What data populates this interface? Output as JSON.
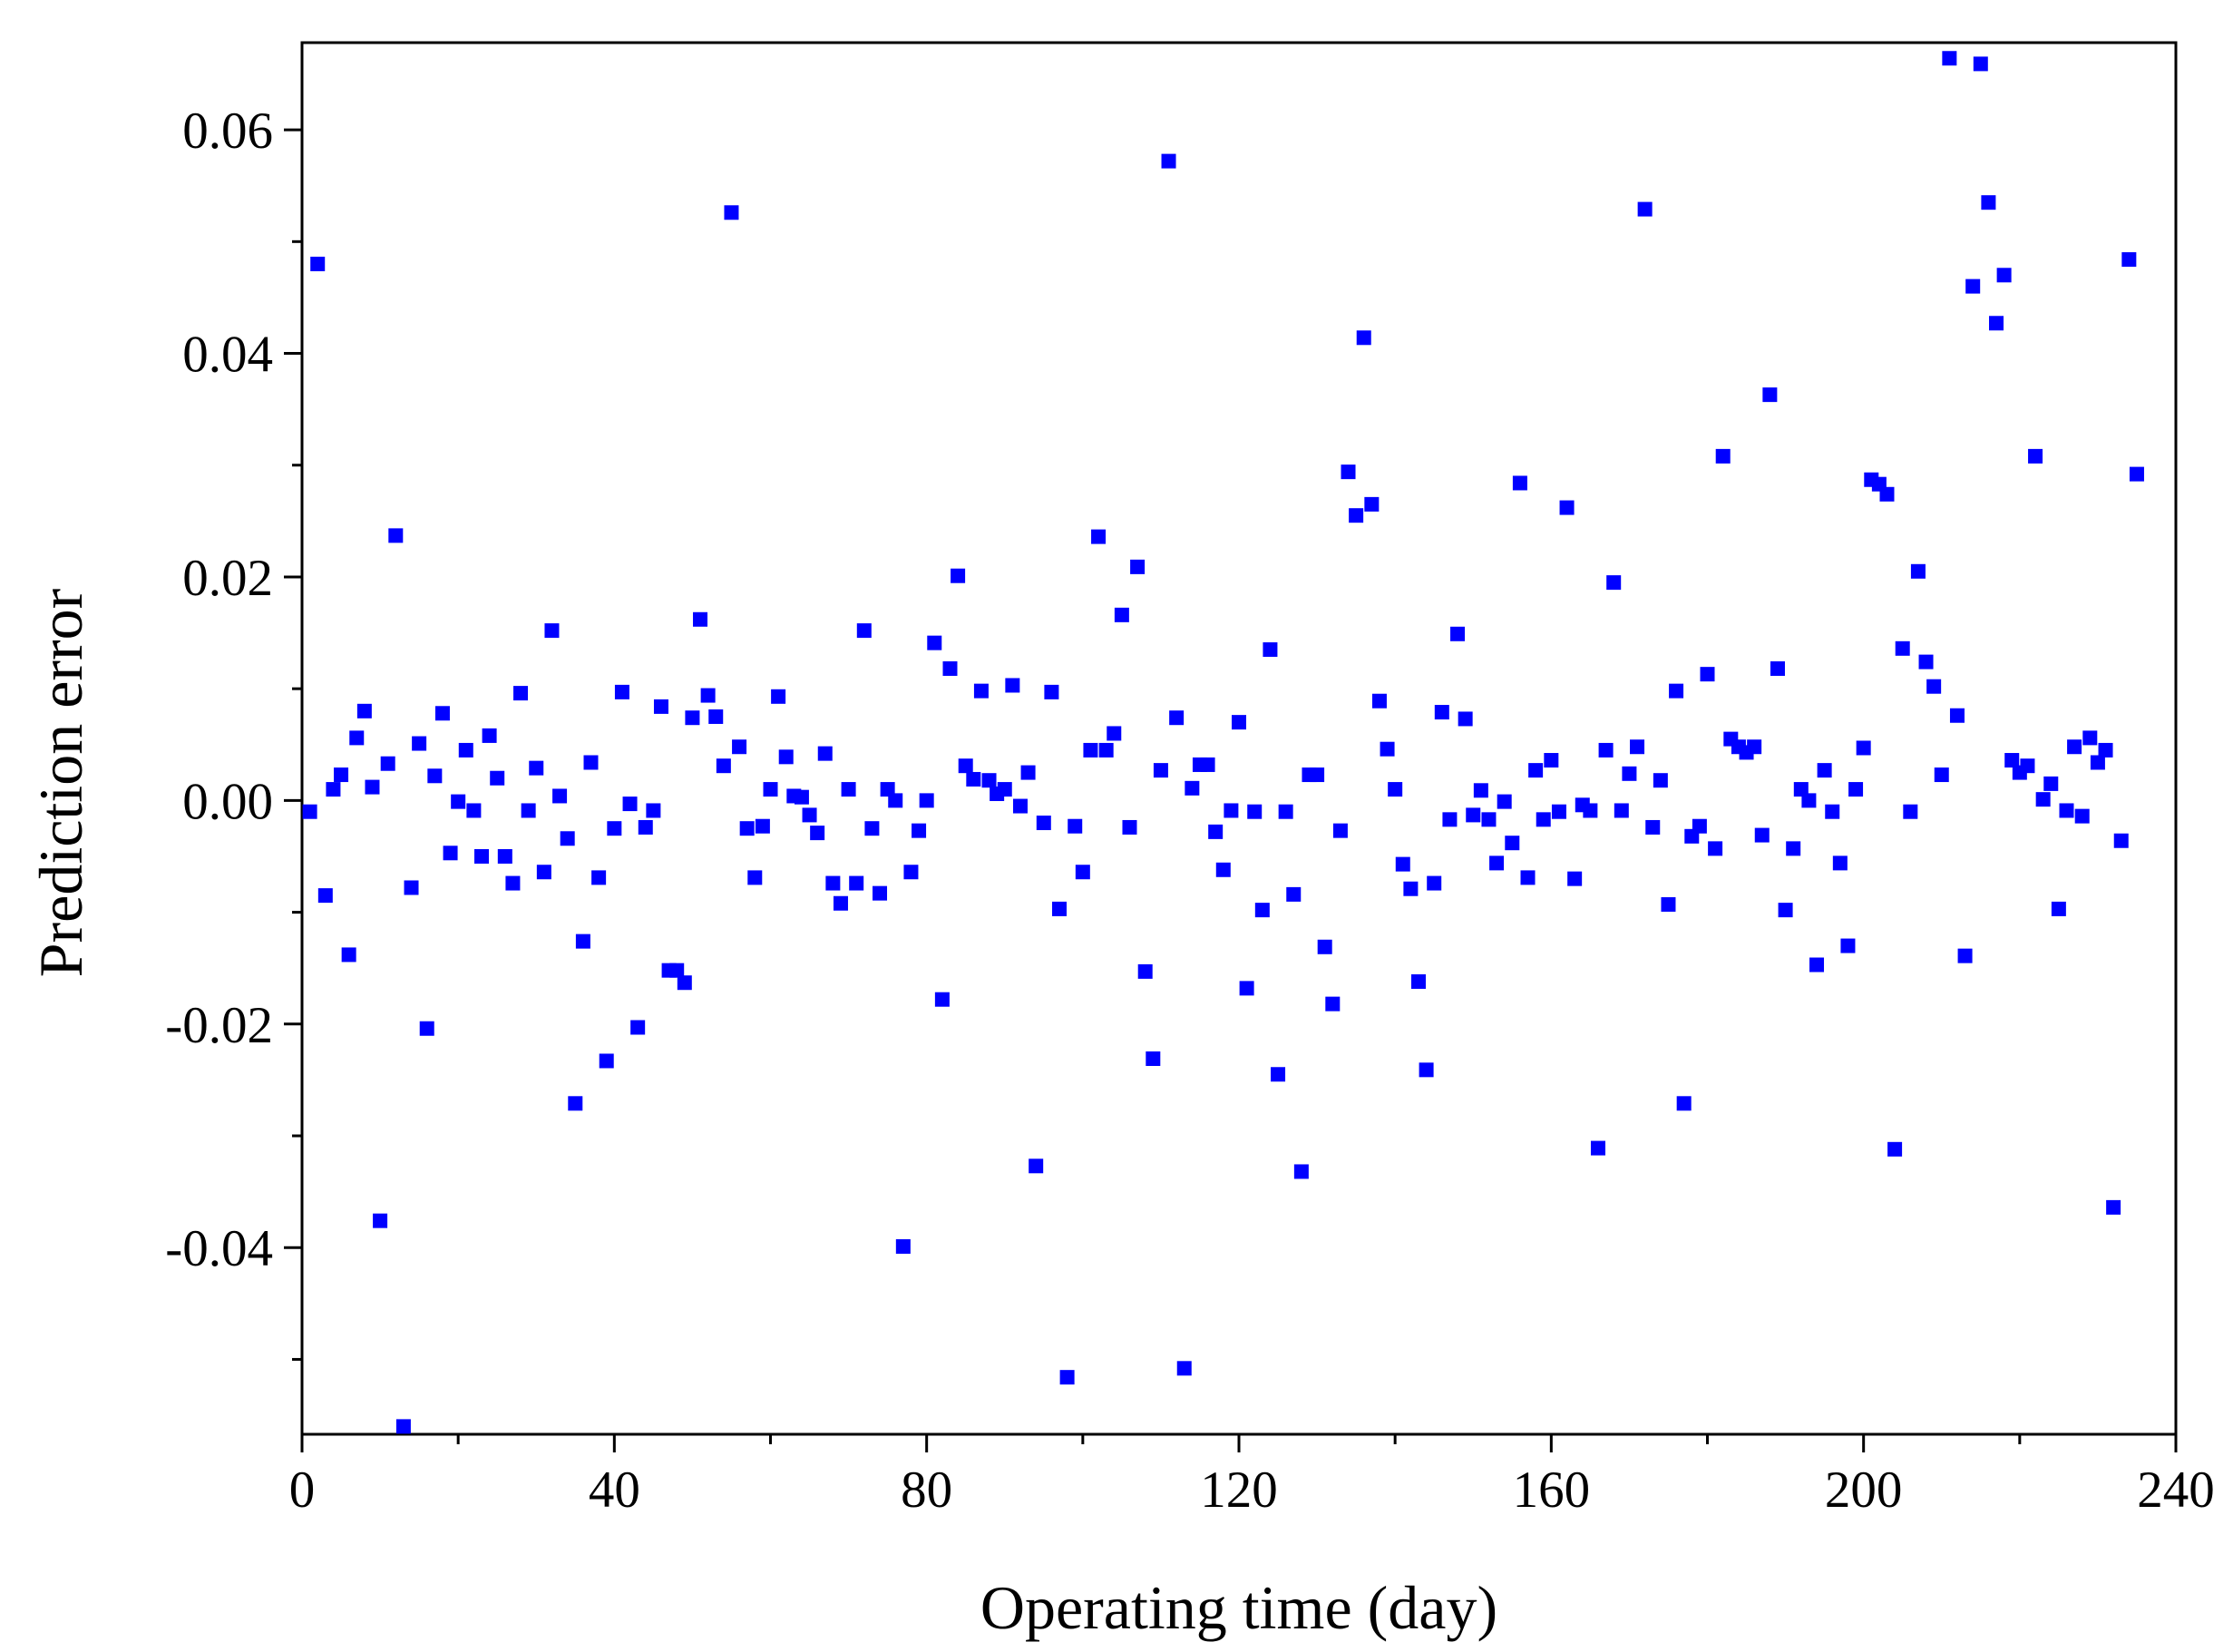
{
  "chart_data": {
    "type": "scatter",
    "xlabel": "Operating time (day)",
    "ylabel": "Prediction error",
    "xlim": [
      0,
      240
    ],
    "ylim": [
      -0.0567,
      0.0678
    ],
    "xticks": [
      0,
      40,
      80,
      120,
      160,
      200,
      240
    ],
    "xminorticks": [
      20,
      60,
      100,
      140,
      180,
      220
    ],
    "yticks": [
      {
        "value": -0.04,
        "label": "-0.04"
      },
      {
        "value": -0.02,
        "label": "-0.02"
      },
      {
        "value": 0,
        "label": "0.00"
      },
      {
        "value": 0.02,
        "label": "0.02"
      },
      {
        "value": 0.04,
        "label": "0.04"
      },
      {
        "value": 0.06,
        "label": "0.06"
      }
    ],
    "yminorticks": [
      -0.05,
      -0.03,
      -0.01,
      0.01,
      0.03,
      0.05
    ],
    "color": "#0000ff",
    "x": [
      1,
      2,
      3,
      4,
      5,
      6,
      7,
      8,
      9,
      10,
      11,
      12,
      13,
      14,
      15,
      16,
      17,
      18,
      19,
      20,
      21,
      22,
      23,
      24,
      25,
      26,
      27,
      28,
      29,
      30,
      31,
      32,
      33,
      34,
      35,
      36,
      37,
      38,
      39,
      40,
      41,
      42,
      43,
      44,
      45,
      46,
      47,
      48,
      49,
      50,
      51,
      52,
      53,
      54,
      55,
      56,
      57,
      58,
      59,
      60,
      61,
      62,
      63,
      64,
      65,
      66,
      67,
      68,
      69,
      70,
      71,
      72,
      73,
      74,
      75,
      76,
      77,
      78,
      79,
      80,
      81,
      82,
      83,
      84,
      85,
      86,
      87,
      88,
      89,
      90,
      91,
      92,
      93,
      94,
      95,
      96,
      97,
      98,
      99,
      100,
      101,
      102,
      103,
      104,
      105,
      106,
      107,
      108,
      109,
      110,
      111,
      112,
      113,
      114,
      115,
      116,
      117,
      118,
      119,
      120,
      121,
      122,
      123,
      124,
      125,
      126,
      127,
      128,
      129,
      130,
      131,
      132,
      133,
      134,
      135,
      136,
      137,
      138,
      139,
      140,
      141,
      142,
      143,
      144,
      145,
      146,
      147,
      148,
      149,
      150,
      151,
      152,
      153,
      154,
      155,
      156,
      157,
      158,
      159,
      160,
      161,
      162,
      163,
      164,
      165,
      166,
      167,
      168,
      169,
      170,
      171,
      172,
      173,
      174,
      175,
      176,
      177,
      178,
      179,
      180,
      181,
      182,
      183,
      184,
      185,
      186,
      187,
      188,
      189,
      190,
      191,
      192,
      193,
      194,
      195,
      196,
      197,
      198,
      199,
      200,
      201,
      202,
      203,
      204,
      205,
      206,
      207,
      208,
      209,
      210,
      211,
      212,
      213,
      214,
      215,
      216,
      217,
      218,
      219,
      220,
      221,
      222,
      223,
      224,
      225,
      226,
      227,
      228,
      229,
      230,
      231,
      232,
      233,
      234,
      235
    ],
    "y": [
      -0.001,
      0.048,
      -0.0085,
      0.001,
      0.0023,
      -0.0138,
      0.0056,
      0.008,
      0.0012,
      -0.0376,
      0.0033,
      0.0237,
      -0.056,
      -0.0078,
      0.0051,
      -0.0204,
      0.0022,
      0.0078,
      -0.0047,
      -0.0001,
      0.0045,
      -0.0009,
      -0.005,
      0.0058,
      0.002,
      -0.005,
      -0.0074,
      0.0096,
      -0.0009,
      0.0029,
      -0.0064,
      0.0152,
      0.0004,
      -0.0034,
      -0.0271,
      -0.0126,
      0.0034,
      -0.0069,
      -0.0233,
      -0.0025,
      0.0097,
      -0.0003,
      -0.0203,
      -0.0024,
      -0.0009,
      0.0084,
      -0.0152,
      -0.0152,
      -0.0163,
      0.0074,
      0.0162,
      0.0094,
      0.0075,
      0.0031,
      0.0526,
      0.0048,
      -0.0025,
      -0.0069,
      -0.0023,
      0.001,
      0.0093,
      0.0039,
      0.0004,
      0.0003,
      -0.0013,
      -0.0029,
      0.0042,
      -0.0074,
      -0.0092,
      0.001,
      -0.0074,
      0.0152,
      -0.0025,
      -0.0083,
      0.001,
      0.0,
      -0.0399,
      -0.0064,
      -0.0027,
      0.0,
      0.0141,
      -0.0178,
      0.0118,
      0.0201,
      0.0031,
      0.0019,
      0.0098,
      0.0018,
      0.0006,
      0.001,
      0.0103,
      -0.0005,
      0.0025,
      -0.0327,
      -0.002,
      0.0097,
      -0.0097,
      -0.0516,
      -0.0023,
      -0.0064,
      0.0045,
      0.0236,
      0.0045,
      0.006,
      0.0166,
      -0.0024,
      0.0209,
      -0.0153,
      -0.0231,
      0.0027,
      0.0572,
      0.0074,
      -0.0508,
      0.0011,
      0.0032,
      0.0032,
      -0.0028,
      -0.0062,
      -0.0009,
      0.007,
      -0.0168,
      -0.001,
      -0.0098,
      0.0135,
      -0.0245,
      -0.001,
      -0.0084,
      -0.0332,
      0.0023,
      0.0023,
      -0.0131,
      -0.0182,
      -0.0027,
      0.0294,
      0.0255,
      0.0414,
      0.0265,
      0.0089,
      0.0046,
      0.001,
      -0.0057,
      -0.0079,
      -0.0162,
      -0.0241,
      -0.0074,
      0.0079,
      -0.0017,
      0.0149,
      0.0073,
      -0.0013,
      0.0009,
      -0.0017,
      -0.0056,
      -0.0001,
      -0.0038,
      0.0284,
      -0.0069,
      0.0027,
      -0.0017,
      0.0036,
      -0.001,
      0.0262,
      -0.007,
      -0.0004,
      -0.0009,
      -0.0311,
      0.0045,
      0.0195,
      -0.0009,
      0.0024,
      0.0048,
      0.0529,
      -0.0024,
      0.0018,
      -0.0093,
      0.0098,
      -0.0271,
      -0.0032,
      -0.0023,
      0.0113,
      -0.0043,
      0.0308,
      0.0055,
      0.0048,
      0.0043,
      0.0048,
      -0.0031,
      0.0363,
      0.0118,
      -0.0098,
      -0.0043,
      0.001,
      0.0,
      -0.0147,
      0.0027,
      -0.001,
      -0.0056,
      -0.013,
      0.001,
      0.0047,
      0.0287,
      0.0283,
      0.0274,
      -0.0312,
      0.0136,
      -0.001,
      0.0205,
      0.0124,
      0.0102,
      0.0023,
      0.0664,
      0.0076,
      -0.0139,
      0.046,
      0.0659,
      0.0535,
      0.0427,
      0.047,
      0.0036,
      0.0025,
      0.0031,
      0.0308,
      0.0001,
      0.0015,
      -0.0097,
      -0.0009,
      0.0048,
      -0.0014,
      0.0056,
      0.0034,
      0.0045,
      -0.0364,
      -0.0036,
      0.0484,
      0.0292
    ]
  }
}
